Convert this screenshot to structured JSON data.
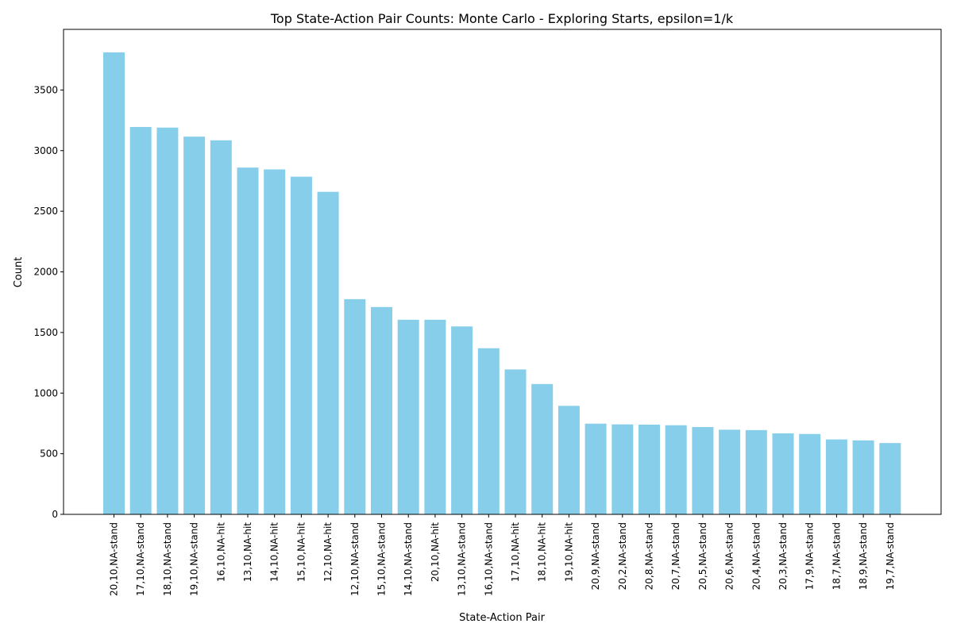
{
  "chart_data": {
    "type": "bar",
    "title": "Top State-Action Pair Counts: Monte Carlo - Exploring Starts, epsilon=1/k",
    "xlabel": "State-Action Pair",
    "ylabel": "Count",
    "ylim": [
      0,
      4000
    ],
    "yticks": [
      0,
      500,
      1000,
      1500,
      2000,
      2500,
      3000,
      3500
    ],
    "grid": false,
    "bar_color": "#87ceeb",
    "categories": [
      "20,10,NA-stand",
      "17,10,NA-stand",
      "18,10,NA-stand",
      "19,10,NA-stand",
      "16,10,NA-hit",
      "13,10,NA-hit",
      "14,10,NA-hit",
      "15,10,NA-hit",
      "12,10,NA-hit",
      "12,10,NA-stand",
      "15,10,NA-stand",
      "14,10,NA-stand",
      "20,10,NA-hit",
      "13,10,NA-stand",
      "16,10,NA-stand",
      "17,10,NA-hit",
      "18,10,NA-hit",
      "19,10,NA-hit",
      "20,9,NA-stand",
      "20,2,NA-stand",
      "20,8,NA-stand",
      "20,7,NA-stand",
      "20,5,NA-stand",
      "20,6,NA-stand",
      "20,4,NA-stand",
      "20,3,NA-stand",
      "17,9,NA-stand",
      "18,7,NA-stand",
      "18,9,NA-stand",
      "19,7,NA-stand"
    ],
    "values": [
      3810,
      3195,
      3190,
      3115,
      3085,
      2860,
      2845,
      2785,
      2660,
      1775,
      1710,
      1605,
      1605,
      1550,
      1370,
      1195,
      1075,
      895,
      748,
      742,
      740,
      735,
      720,
      698,
      695,
      668,
      663,
      618,
      610,
      588
    ]
  }
}
